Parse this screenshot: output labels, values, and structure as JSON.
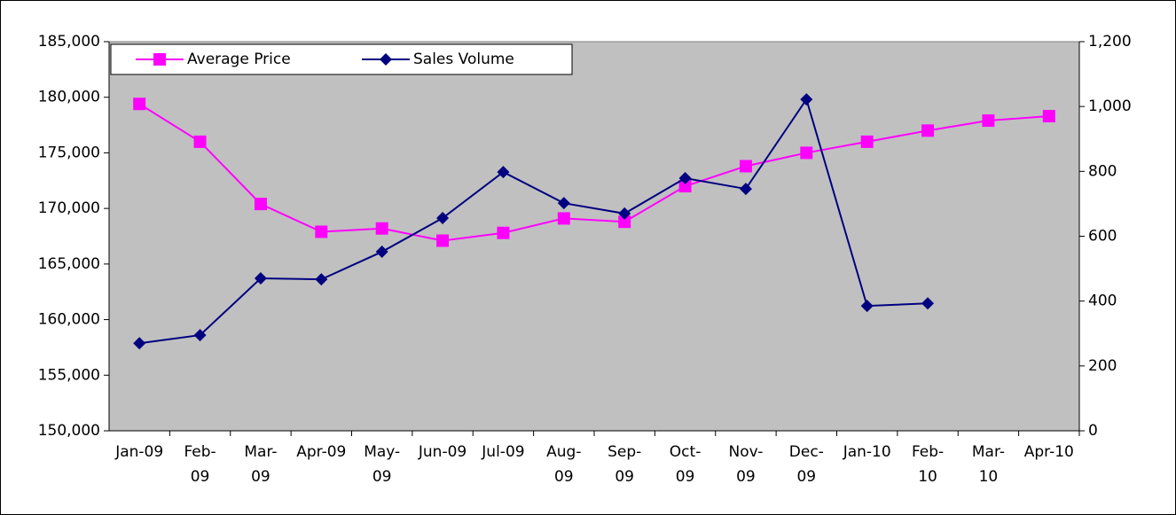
{
  "chart_data": {
    "type": "line",
    "categories": [
      "Jan-09",
      "Feb-09",
      "Mar-09",
      "Apr-09",
      "May-09",
      "Jun-09",
      "Jul-09",
      "Aug-09",
      "Sep-09",
      "Oct-09",
      "Nov-09",
      "Dec-09",
      "Jan-10",
      "Feb-10",
      "Mar-10",
      "Apr-10"
    ],
    "series": [
      {
        "name": "Average Price",
        "color": "#ff00ff",
        "marker": "square",
        "values": [
          179400,
          176000,
          170400,
          167900,
          168200,
          167100,
          167800,
          169100,
          168800,
          172000,
          173800,
          175000,
          176000,
          177000,
          177900,
          178300
        ]
      },
      {
        "name": "Sales Volume",
        "color": "#000080",
        "marker": "diamond",
        "axis": "y2",
        "values": [
          270,
          295,
          470,
          467,
          552,
          656,
          798,
          702,
          670,
          779,
          746,
          1022,
          385,
          393,
          null,
          null
        ]
      }
    ],
    "ylim": [
      150000,
      185000
    ],
    "yticks": [
      {
        "value": 150000,
        "label": "150,000"
      },
      {
        "value": 155000,
        "label": "155,000"
      },
      {
        "value": 160000,
        "label": "160,000"
      },
      {
        "value": 165000,
        "label": "165,000"
      },
      {
        "value": 170000,
        "label": "170,000"
      },
      {
        "value": 175000,
        "label": "175,000"
      },
      {
        "value": 180000,
        "label": "180,000"
      },
      {
        "value": 185000,
        "label": "185,000"
      }
    ],
    "y2lim": [
      0,
      1200
    ],
    "y2ticks": [
      0,
      200,
      400,
      600,
      800,
      {
        "value": 1000,
        "label": "1,000"
      },
      {
        "value": 1200,
        "label": "1,200"
      }
    ],
    "legend": "upper left",
    "plot_background": "#c0c0c0"
  }
}
